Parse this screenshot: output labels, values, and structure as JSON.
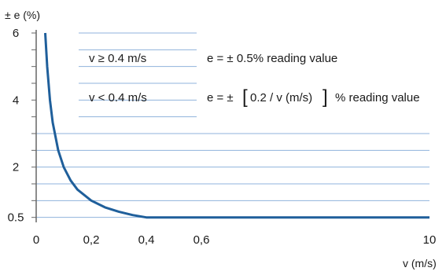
{
  "chart_data": {
    "type": "line",
    "title": "",
    "ylabel": "± e (%)",
    "xlabel": "v (m/s)",
    "x_tick_labels": [
      "0",
      "0,2",
      "0,4",
      "0,6",
      "10"
    ],
    "x_tick_values": [
      0,
      0.2,
      0.4,
      0.6,
      10
    ],
    "x_axis_breaks_after": 0.6,
    "y_tick_labels": [
      "0.5",
      "2",
      "4",
      "6"
    ],
    "y_tick_values": [
      0.5,
      2,
      4,
      6
    ],
    "ylim": [
      0,
      6
    ],
    "grid": "horizontal",
    "colors": {
      "line": "#1f5f9b",
      "grid": "#8fb3dc",
      "axis": "#666666"
    },
    "series": [
      {
        "x": [
          0.033,
          0.04,
          0.05,
          0.06,
          0.08,
          0.1,
          0.125,
          0.15,
          0.2,
          0.25,
          0.3,
          0.35,
          0.4,
          10
        ],
        "y": [
          6,
          5,
          4,
          3.33,
          2.5,
          2,
          1.6,
          1.33,
          1,
          0.8,
          0.67,
          0.57,
          0.5,
          0.5
        ]
      }
    ],
    "annotations": [
      {
        "condition": "v ≥ 0.4 m/s",
        "formula": "e = ± 0.5% reading value"
      },
      {
        "condition": "v < 0.4 m/s",
        "formula_prefix": "e = ±",
        "bracket_open": "[",
        "formula_inner": "0.2 / v (m/s)",
        "bracket_close": "]",
        "formula_suffix": "% reading value"
      }
    ]
  }
}
